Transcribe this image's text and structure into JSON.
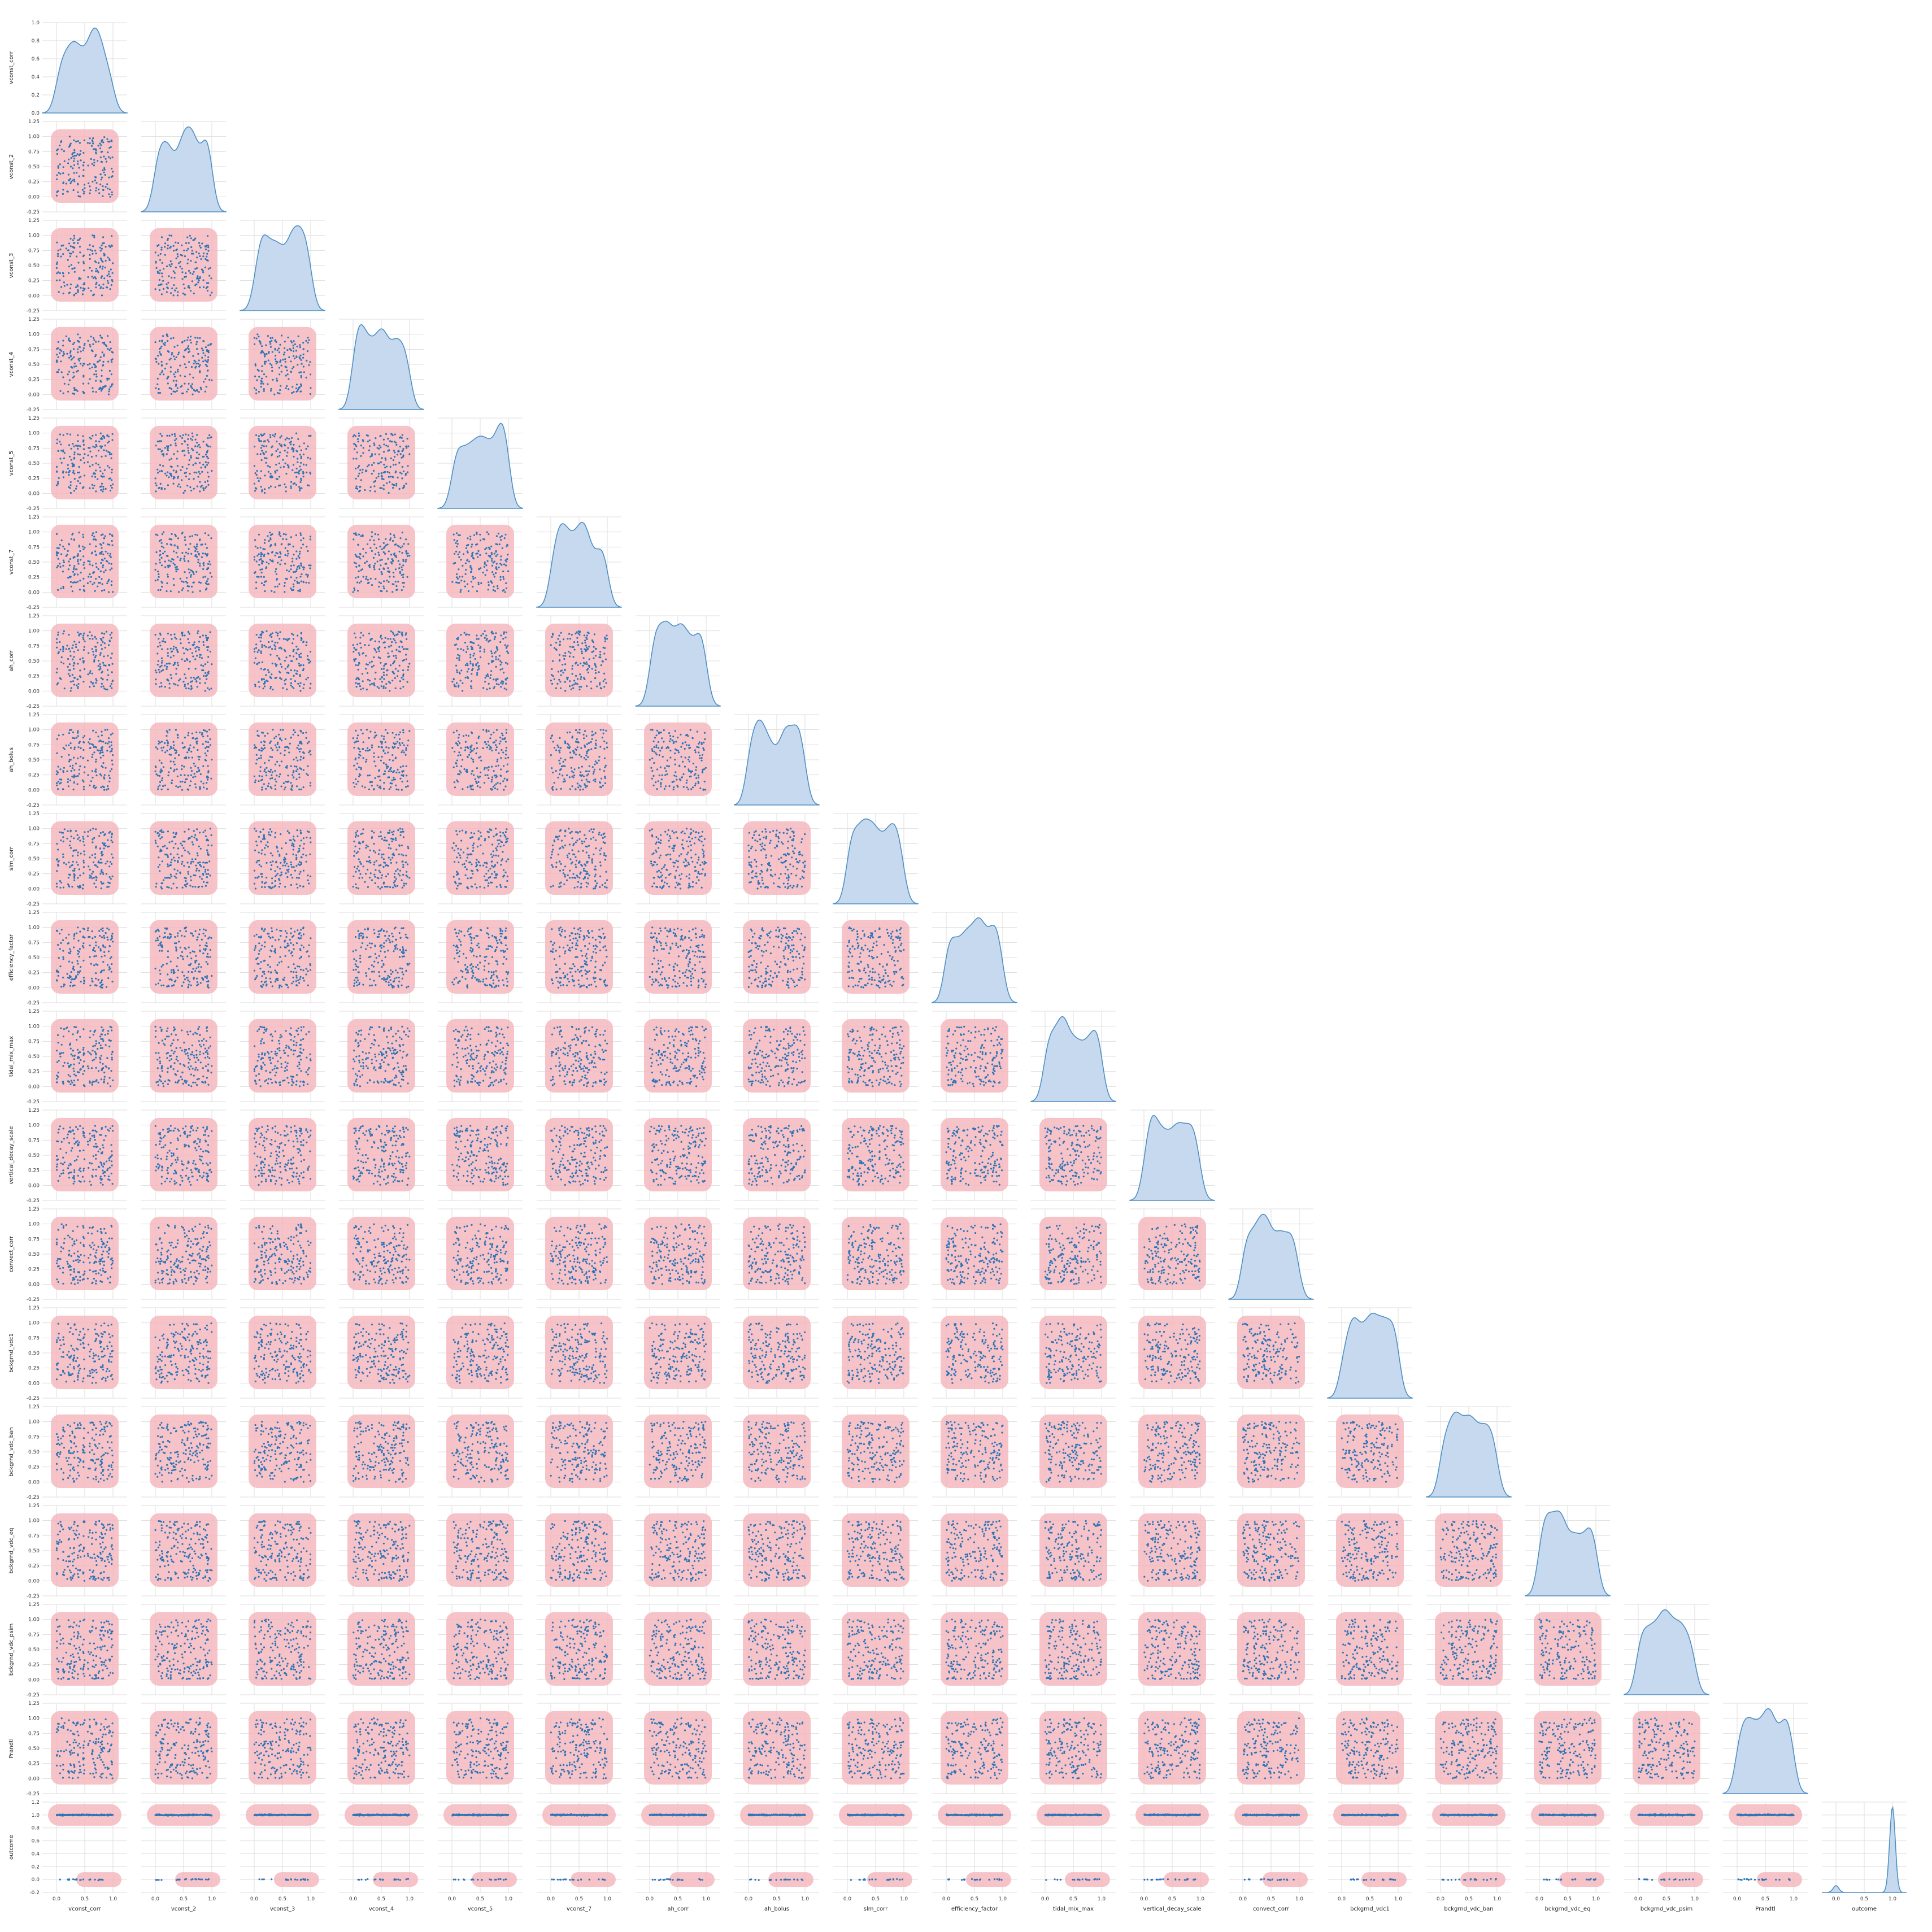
{
  "chart_data": {
    "type": "pairplot",
    "title": "",
    "variables": [
      "vconst_corr",
      "vconst_2",
      "vconst_3",
      "vconst_4",
      "vconst_5",
      "vconst_7",
      "ah_corr",
      "ah_bolus",
      "slm_corr",
      "efficiency_factor",
      "tidal_mix_max",
      "vertical_decay_scale",
      "convect_corr",
      "bckgrnd_vdc1",
      "bckgrnd_vdc_ban",
      "bckgrnd_vdc_eq",
      "bckgrnd_vdc_psim",
      "Prandtl",
      "outcome"
    ],
    "corner": true,
    "diag_kind": "kde",
    "lower_kind": "scatter with kde contour",
    "n_points": 540,
    "colors": {
      "scatter": "#2f74b5",
      "kde_fill": "#f4b9c0",
      "diag_fill": "#c6d9ee",
      "diag_line": "#4e8fc4",
      "grid": "#dddddd"
    },
    "grid": true,
    "first_row_ylim": [
      0.0,
      1.0
    ],
    "first_row_yticks": [
      "0.0",
      "0.2",
      "0.4",
      "0.6",
      "0.8",
      "1.0"
    ],
    "ylim": [
      -0.25,
      1.25
    ],
    "yticks": [
      "-0.25",
      "0.00",
      "0.25",
      "0.50",
      "0.75",
      "1.00",
      "1.25"
    ],
    "outcome_ylim": [
      -0.2,
      1.2
    ],
    "outcome_yticks": [
      "-0.2",
      "0.0",
      "0.2",
      "0.4",
      "0.6",
      "0.8",
      "1.0",
      "1.2"
    ],
    "xticks": [
      "0.0",
      "0.5",
      "1.0"
    ],
    "outcome_xticks": [
      "0.0",
      "0.5",
      "1.0"
    ],
    "outcome_values": [
      0,
      1
    ],
    "outcome_fraction_zero": 0.085,
    "feature_distribution": "uniform on [0, 1]"
  }
}
